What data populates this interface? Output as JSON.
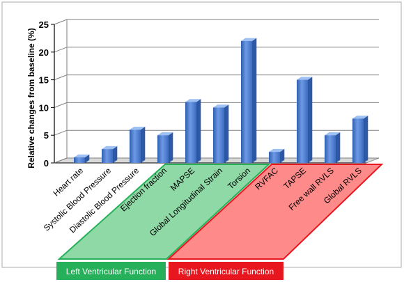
{
  "chart_data": {
    "type": "bar",
    "ylabel": "Relative changes from baseline (%)",
    "ylim": [
      0,
      25
    ],
    "yticks": [
      0,
      5,
      10,
      15,
      20,
      25
    ],
    "grid": true,
    "categories": [
      "Heart rate",
      "Systolic Blood Pressure",
      "Diastolic Blood Pressure",
      "Ejection fraction",
      "MAPSE",
      "Global Longitudinal Strain",
      "Torsion",
      "RVFAC",
      "TAPSE",
      "Free wall RVLS",
      "Global RVLS"
    ],
    "values": [
      1,
      2.5,
      6,
      5,
      11,
      10,
      22,
      2,
      15,
      5,
      8
    ],
    "groups": [
      {
        "label": "Left Ventricular Function",
        "color": "#26b05a",
        "fill": "#8ed9a6",
        "categories": [
          "Ejection fraction",
          "MAPSE",
          "Global Longitudinal Strain",
          "Torsion"
        ]
      },
      {
        "label": "Right Ventricular Function",
        "color": "#e8161e",
        "fill": "#ff8a8a",
        "categories": [
          "RVFAC",
          "TAPSE",
          "Free wall RVLS",
          "Global RVLS"
        ]
      }
    ],
    "bar_color": "#4f81d8"
  }
}
